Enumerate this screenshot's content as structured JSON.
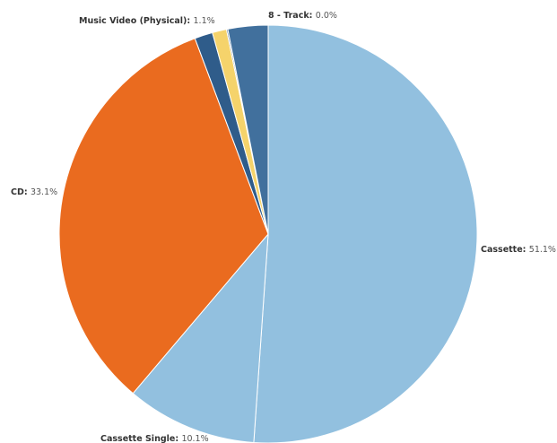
{
  "chart_data": {
    "type": "pie",
    "title": "",
    "slices": [
      {
        "label": "Cassette",
        "value": 51.1,
        "display": "51.1%",
        "color": "#92c0df"
      },
      {
        "label": "Cassette Single",
        "value": 10.1,
        "display": "10.1%",
        "color": "#92c0df"
      },
      {
        "label": "CD",
        "value": 33.1,
        "display": "33.1%",
        "color": "#ea6b1f"
      },
      {
        "label": "",
        "value": 1.4,
        "display": "",
        "color": "#2f5c8a"
      },
      {
        "label": "Music Video (Physical)",
        "value": 1.1,
        "display": "1.1%",
        "color": "#f5d36b"
      },
      {
        "label": "",
        "value": 0.1,
        "display": "",
        "color": "#2f5c8a"
      },
      {
        "label": "8 - Track",
        "value": 0.0,
        "display": "0.0%",
        "color": "#2f5c8a"
      },
      {
        "label": "",
        "value": 3.1,
        "display": "",
        "color": "#41709d"
      }
    ]
  }
}
